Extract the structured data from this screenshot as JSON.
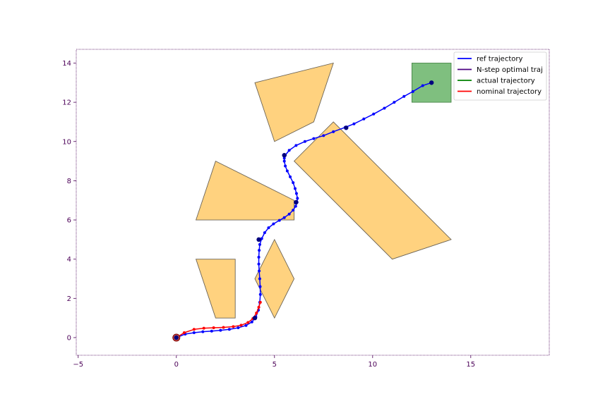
{
  "chart_data": {
    "type": "line",
    "title": "",
    "xlabel": "",
    "ylabel": "",
    "xlim": [
      -5.1,
      19
    ],
    "ylim": [
      -0.9,
      14.7
    ],
    "xticks": [
      -5,
      0,
      5,
      10,
      15
    ],
    "yticks": [
      0,
      2,
      4,
      6,
      8,
      10,
      12,
      14
    ],
    "grid": false,
    "legend_position": "top-right",
    "colors": {
      "axis": "#4b0057",
      "obstacle_fill": "#ffd27f",
      "obstacle_stroke": "#6b6355",
      "goal_fill": "#7fbf7f",
      "goal_stroke": "#3f7f3f",
      "ref": "#0000ff",
      "nstep": "#4b0082",
      "actual": "#008000",
      "nominal": "#ff0000",
      "waypoint": "#00007f"
    },
    "obstacles": [
      [
        [
          4,
          13
        ],
        [
          8,
          14
        ],
        [
          7,
          11
        ],
        [
          5,
          10
        ]
      ],
      [
        [
          2,
          9
        ],
        [
          1,
          6
        ],
        [
          6,
          6
        ],
        [
          6,
          7
        ]
      ],
      [
        [
          8,
          11
        ],
        [
          6,
          9
        ],
        [
          11,
          4
        ],
        [
          14,
          5
        ]
      ],
      [
        [
          5,
          5
        ],
        [
          4,
          3
        ],
        [
          5,
          1
        ],
        [
          6,
          3
        ]
      ],
      [
        [
          1,
          4
        ],
        [
          3,
          4
        ],
        [
          3,
          1
        ],
        [
          2,
          1
        ]
      ]
    ],
    "goal_region": {
      "x": [
        12,
        14
      ],
      "y": [
        12,
        14
      ]
    },
    "series": [
      {
        "name": "ref trajectory",
        "color": "#0000ff",
        "points": [
          [
            0,
            0
          ],
          [
            0.45,
            0.18
          ],
          [
            0.9,
            0.25
          ],
          [
            1.35,
            0.3
          ],
          [
            1.8,
            0.33
          ],
          [
            2.25,
            0.37
          ],
          [
            2.7,
            0.42
          ],
          [
            3.15,
            0.5
          ],
          [
            3.55,
            0.62
          ],
          [
            3.85,
            0.8
          ],
          [
            4.05,
            1.05
          ],
          [
            4.18,
            1.4
          ],
          [
            4.25,
            1.8
          ],
          [
            4.28,
            2.2
          ],
          [
            4.27,
            2.6
          ],
          [
            4.25,
            3.0
          ],
          [
            4.22,
            3.4
          ],
          [
            4.2,
            3.75
          ],
          [
            4.2,
            4.1
          ],
          [
            4.22,
            4.45
          ],
          [
            4.25,
            4.75
          ],
          [
            4.35,
            5.05
          ],
          [
            4.5,
            5.35
          ],
          [
            4.7,
            5.6
          ],
          [
            4.95,
            5.8
          ],
          [
            5.25,
            5.98
          ],
          [
            5.5,
            6.12
          ],
          [
            5.75,
            6.3
          ],
          [
            5.95,
            6.5
          ],
          [
            6.08,
            6.7
          ],
          [
            6.15,
            6.9
          ],
          [
            6.17,
            7.1
          ],
          [
            6.12,
            7.35
          ],
          [
            6.05,
            7.6
          ],
          [
            5.95,
            7.9
          ],
          [
            5.8,
            8.2
          ],
          [
            5.65,
            8.5
          ],
          [
            5.55,
            8.75
          ],
          [
            5.5,
            9.0
          ],
          [
            5.5,
            9.15
          ],
          [
            5.55,
            9.3
          ],
          [
            5.75,
            9.55
          ],
          [
            6.1,
            9.8
          ],
          [
            6.55,
            10.0
          ],
          [
            7.0,
            10.15
          ],
          [
            7.5,
            10.3
          ],
          [
            8.0,
            10.5
          ],
          [
            8.6,
            10.72
          ],
          [
            9.05,
            10.9
          ],
          [
            9.55,
            11.15
          ],
          [
            10.05,
            11.4
          ],
          [
            10.6,
            11.7
          ],
          [
            11.1,
            12.0
          ],
          [
            11.6,
            12.3
          ],
          [
            12.05,
            12.55
          ],
          [
            12.55,
            12.85
          ],
          [
            13,
            13
          ]
        ]
      },
      {
        "name": "N-step optimal traj",
        "color": "#4b0082",
        "points": []
      },
      {
        "name": "actual trajectory",
        "color": "#008000",
        "points": []
      },
      {
        "name": "nominal trajectory",
        "color": "#ff0000",
        "points": [
          [
            0,
            0
          ],
          [
            0.4,
            0.25
          ],
          [
            0.9,
            0.42
          ],
          [
            1.4,
            0.48
          ],
          [
            1.9,
            0.5
          ],
          [
            2.4,
            0.52
          ],
          [
            2.9,
            0.56
          ],
          [
            3.3,
            0.63
          ],
          [
            3.65,
            0.77
          ],
          [
            3.9,
            0.97
          ],
          [
            4.08,
            1.25
          ],
          [
            4.2,
            1.55
          ],
          [
            4.28,
            1.8
          ]
        ]
      }
    ],
    "waypoints": [
      [
        0,
        0
      ],
      [
        4,
        1
      ],
      [
        4.2,
        5
      ],
      [
        6.1,
        6.9
      ],
      [
        5.5,
        9.3
      ],
      [
        8.65,
        10.7
      ],
      [
        13,
        13
      ]
    ]
  }
}
